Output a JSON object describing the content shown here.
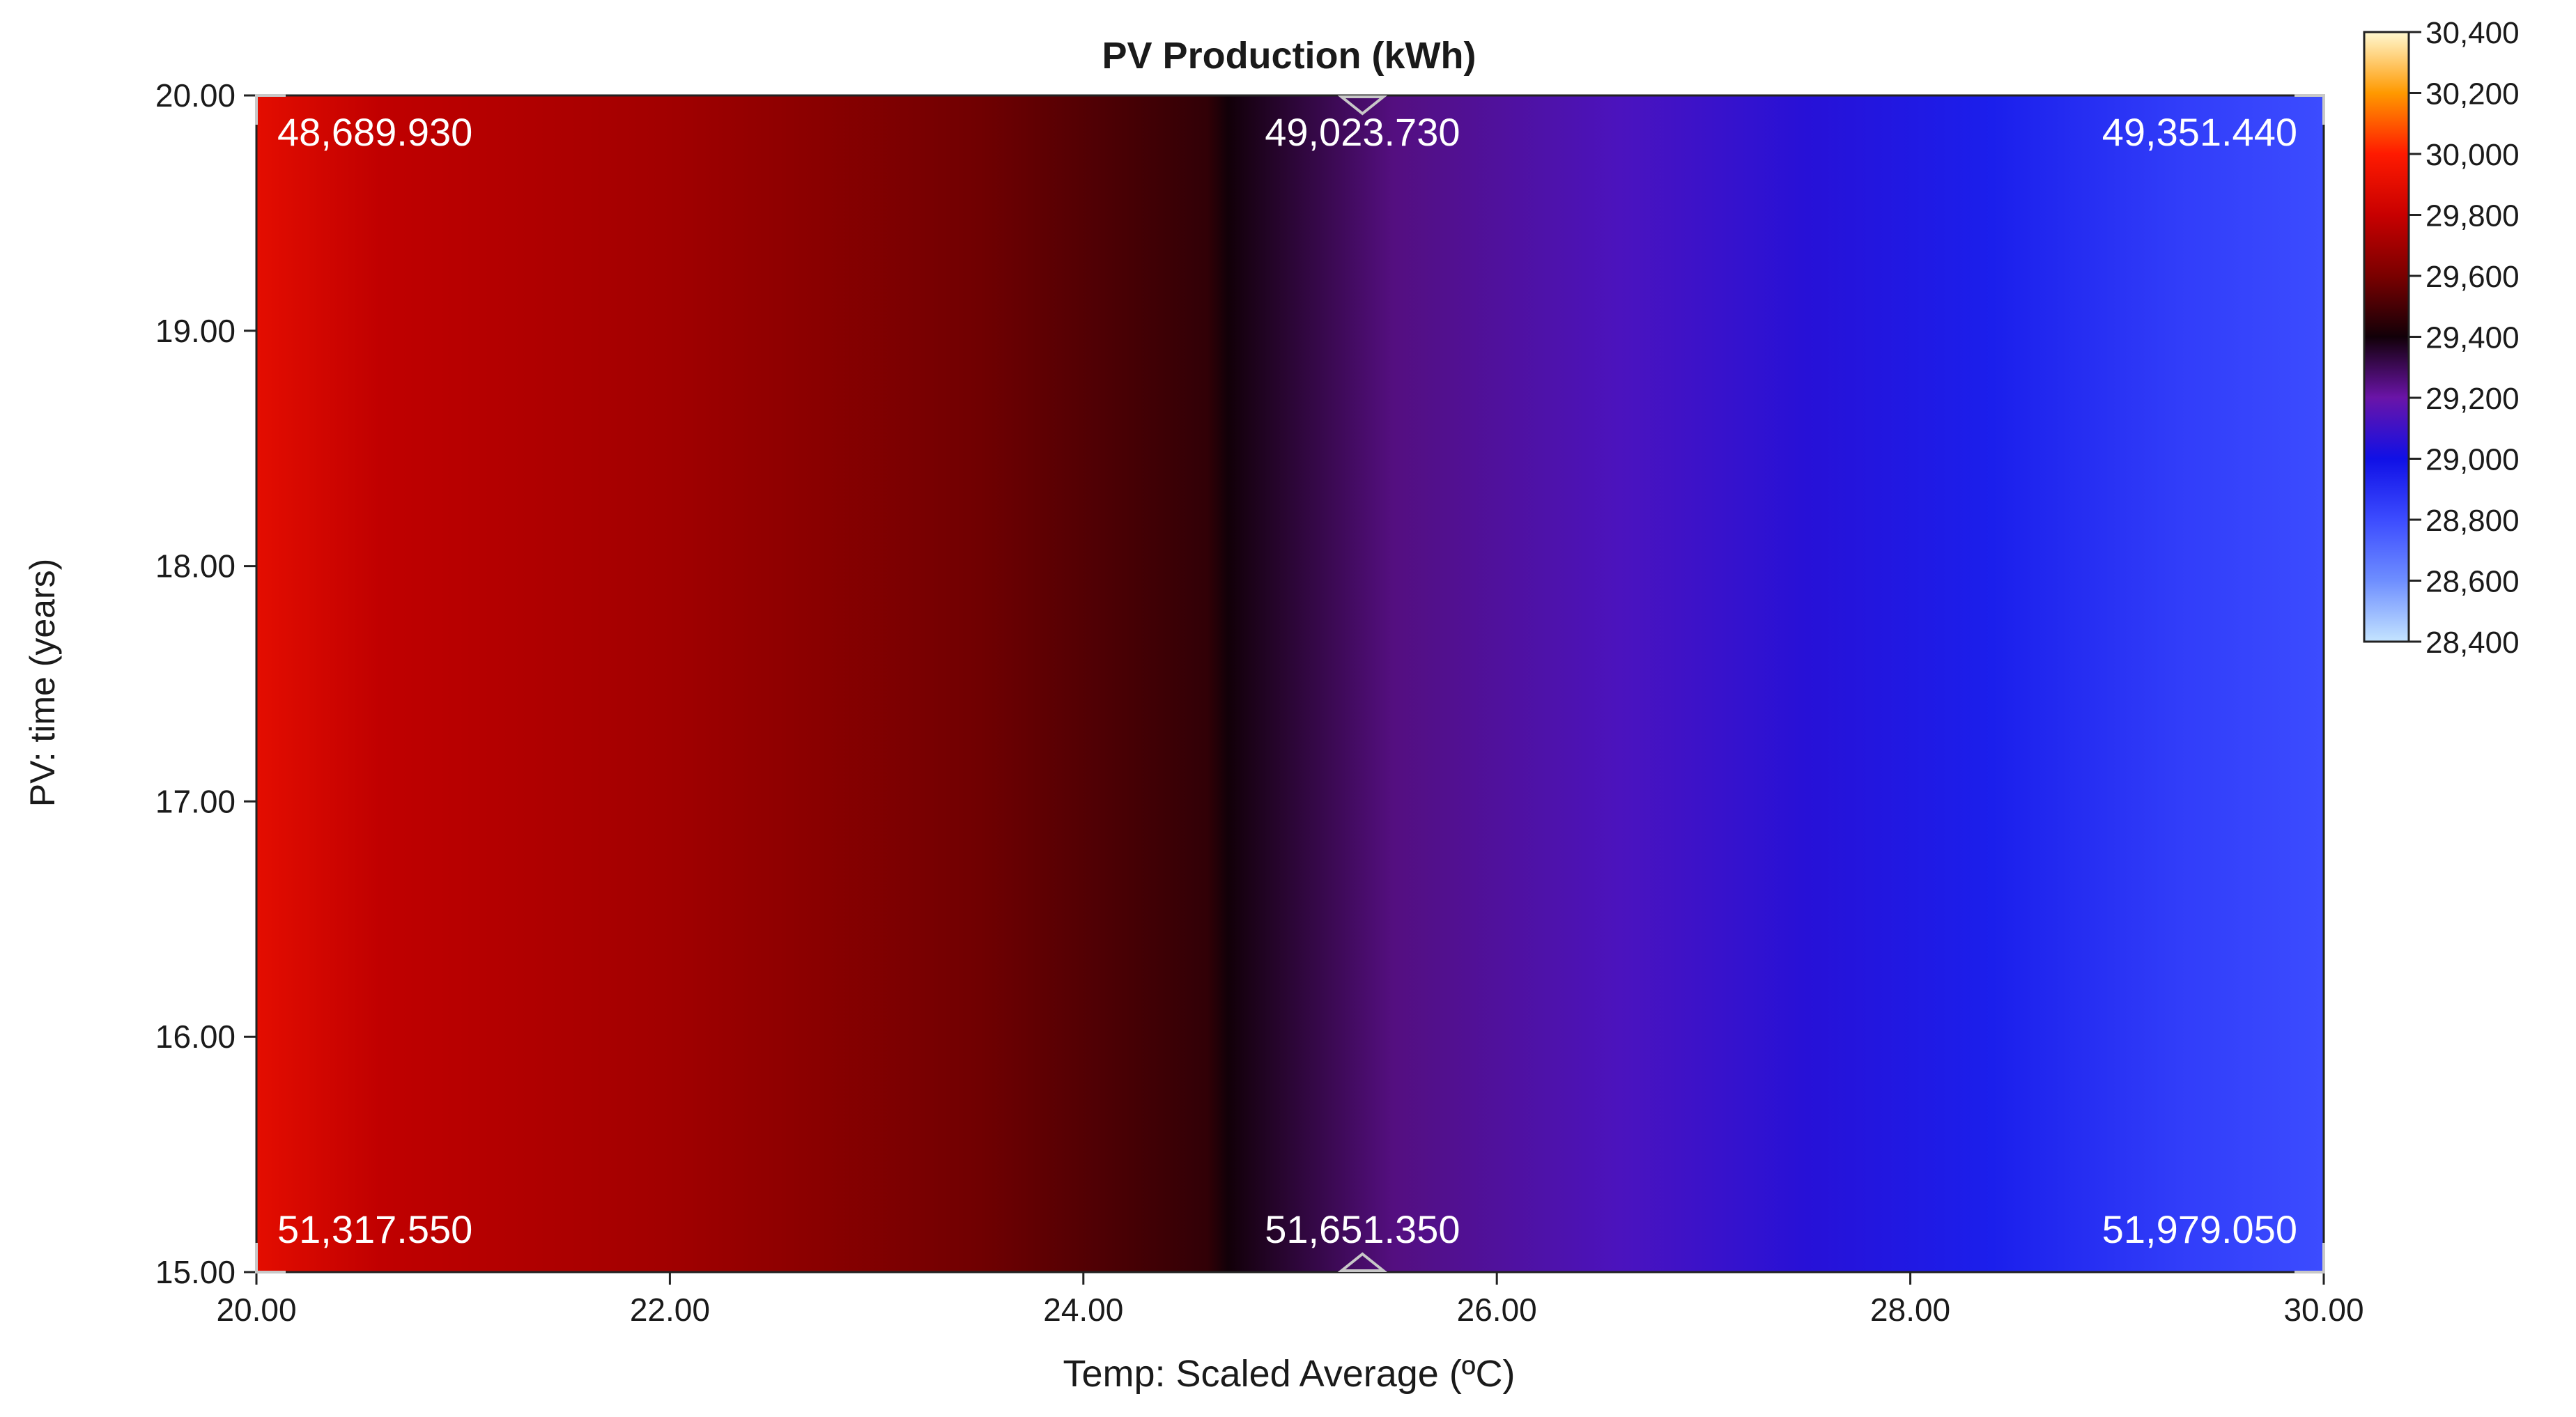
{
  "chart_data": {
    "type": "heatmap",
    "title": "PV Production (kWh)",
    "xlabel": "Temp: Scaled Average (ºC)",
    "ylabel": "PV: time (years)",
    "xlim": [
      20,
      30
    ],
    "ylim": [
      15,
      20
    ],
    "x_ticks": [
      "20.00",
      "22.00",
      "24.00",
      "26.00",
      "28.00",
      "30.00"
    ],
    "y_ticks": [
      "15.00",
      "16.00",
      "17.00",
      "18.00",
      "19.00",
      "20.00"
    ],
    "point_labels": [
      {
        "x": 20.0,
        "y": 20,
        "label": "48,689.930"
      },
      {
        "x": 25.35,
        "y": 20,
        "label": "49,023.730"
      },
      {
        "x": 30.0,
        "y": 20,
        "label": "49,351.440"
      },
      {
        "x": 20.0,
        "y": 15,
        "label": "51,317.550"
      },
      {
        "x": 25.35,
        "y": 15,
        "label": "51,651.350"
      },
      {
        "x": 30.0,
        "y": 15,
        "label": "51,979.050"
      }
    ],
    "color_profile": [
      {
        "x": 20.0,
        "value": 29900
      },
      {
        "x": 20.6,
        "value": 29780
      },
      {
        "x": 22.0,
        "value": 29700
      },
      {
        "x": 23.5,
        "value": 29580
      },
      {
        "x": 24.6,
        "value": 29460
      },
      {
        "x": 24.7,
        "value": 29400
      },
      {
        "x": 25.5,
        "value": 29250
      },
      {
        "x": 26.6,
        "value": 29130
      },
      {
        "x": 27.5,
        "value": 29050
      },
      {
        "x": 28.4,
        "value": 28950
      },
      {
        "x": 29.3,
        "value": 28850
      },
      {
        "x": 30.0,
        "value": 28800
      }
    ],
    "colorbar": {
      "ticks": [
        "30,400",
        "30,200",
        "30,000",
        "29,800",
        "29,600",
        "29,400",
        "29,200",
        "29,000",
        "28,800",
        "28,600",
        "28,400"
      ],
      "range": [
        28400,
        30400
      ],
      "colorscale": [
        {
          "value": 28400,
          "color": "#c4e4ff"
        },
        {
          "value": 28600,
          "color": "#6e8eff"
        },
        {
          "value": 28800,
          "color": "#3c4cff"
        },
        {
          "value": 29000,
          "color": "#1010e6"
        },
        {
          "value": 29200,
          "color": "#6a14a8"
        },
        {
          "value": 29400,
          "color": "#120008"
        },
        {
          "value": 29600,
          "color": "#7a0000"
        },
        {
          "value": 29800,
          "color": "#c80000"
        },
        {
          "value": 30000,
          "color": "#ff1a00"
        },
        {
          "value": 30200,
          "color": "#ff9900"
        },
        {
          "value": 30400,
          "color": "#fff8d0"
        }
      ]
    }
  }
}
